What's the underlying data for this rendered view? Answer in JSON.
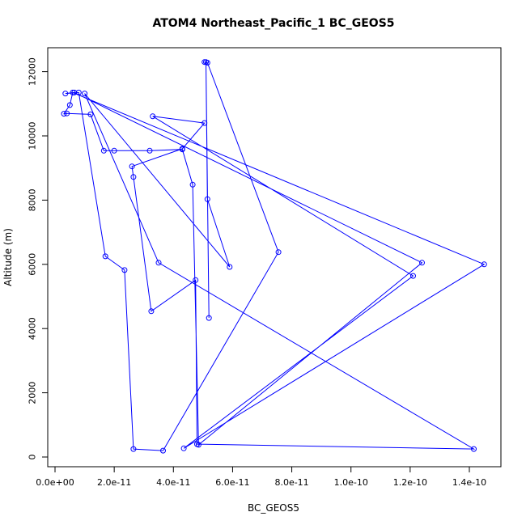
{
  "chart_data": {
    "type": "line",
    "title": "ATOM4 Northeast_Pacific_1 BC_GEOS5",
    "xlabel": "BC_GEOS5",
    "ylabel": "Altitude (m)",
    "xlim": [
      0,
      1.5e-10
    ],
    "ylim": [
      0,
      12500
    ],
    "x_ticks": [
      0,
      2e-11,
      4e-11,
      6e-11,
      8e-11,
      1e-10,
      1.2e-10,
      1.4e-10
    ],
    "x_tick_labels": [
      "0.0e+00",
      "2.0e-11",
      "4.0e-11",
      "6.0e-11",
      "8.0e-11",
      "1.0e-10",
      "1.2e-10",
      "1.4e-10"
    ],
    "y_ticks": [
      0,
      2000,
      4000,
      6000,
      8000,
      10000,
      12000
    ],
    "y_tick_labels": [
      "0",
      "2000",
      "4000",
      "6000",
      "8000",
      "10000",
      "12000"
    ],
    "grid": false,
    "series_color": "#0000ff",
    "marker": "open-circle",
    "series": [
      {
        "points": [
          [
            5.05e-11,
            12300
          ],
          [
            5.15e-11,
            12280
          ],
          [
            7.55e-11,
            6380
          ],
          [
            3.65e-11,
            200
          ],
          [
            2.65e-11,
            250
          ],
          [
            2.35e-11,
            5820
          ],
          [
            1.7e-11,
            6250
          ],
          [
            8e-12,
            11350
          ],
          [
            3.5e-12,
            11320
          ],
          [
            6.5e-12,
            11350
          ],
          [
            1.24e-10,
            6050
          ],
          [
            4.85e-11,
            380
          ],
          [
            4.65e-11,
            8480
          ],
          [
            4.3e-11,
            9580
          ],
          [
            3.2e-11,
            9540
          ],
          [
            2e-11,
            9540
          ],
          [
            1.65e-11,
            9540
          ],
          [
            1.2e-11,
            10670
          ],
          [
            4e-12,
            10700
          ],
          [
            3e-12,
            10690
          ],
          [
            5e-12,
            10960
          ],
          [
            6e-12,
            11350
          ],
          [
            1.45e-10,
            6000
          ],
          [
            4.35e-11,
            270
          ],
          [
            1.21e-10,
            5640
          ],
          [
            3.3e-11,
            10610
          ],
          [
            5.05e-11,
            10400
          ],
          [
            4.3e-11,
            9600
          ],
          [
            2.6e-11,
            9050
          ],
          [
            2.65e-11,
            8720
          ],
          [
            3.25e-11,
            4540
          ],
          [
            4.75e-11,
            5510
          ],
          [
            4.8e-11,
            400
          ],
          [
            1.415e-10,
            250
          ],
          [
            3.5e-11,
            6050
          ],
          [
            1e-11,
            11320
          ],
          [
            5.9e-11,
            5920
          ],
          [
            5.15e-11,
            8030
          ],
          [
            5.1e-11,
            12300
          ],
          [
            5.2e-11,
            4330
          ]
        ]
      }
    ]
  }
}
